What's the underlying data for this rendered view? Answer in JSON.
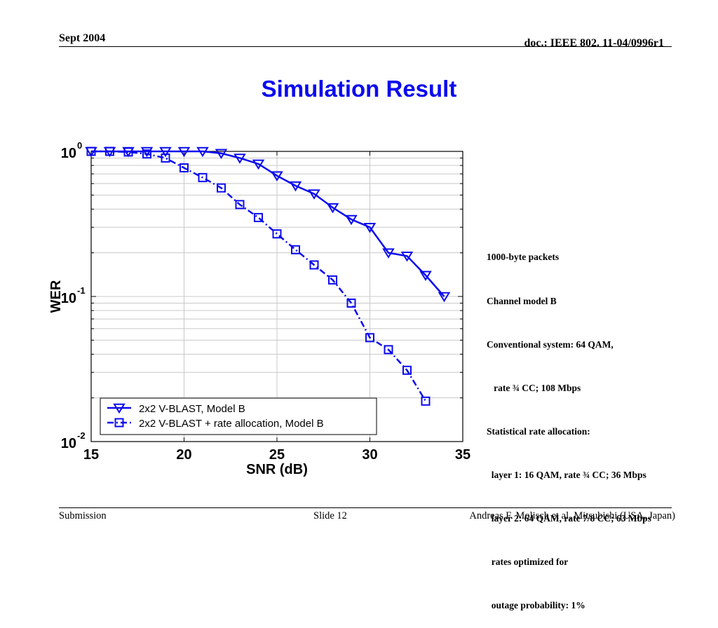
{
  "header": {
    "date": "Sept 2004",
    "doc": "doc.: IEEE 802. 11-04/0996r1"
  },
  "slide": {
    "title": "Simulation Result"
  },
  "notes": {
    "lines": [
      "1000-byte packets",
      "Channel model B",
      "Conventional system: 64 QAM,",
      "   rate ¾ CC; 108 Mbps",
      "Statistical rate allocation:",
      "  layer 1: 16 QAM, rate ¾ CC; 36 Mbps",
      "  layer 2: 64 QAM, rate 7/8 CC; 63 Mbps",
      "  rates optimized for",
      "  outage probability: 1%"
    ]
  },
  "footer": {
    "left": "Submission",
    "center": "Slide 12",
    "right": "Andreas F. Molisch et al, Mitsubishi (USA, Japan)"
  },
  "chart_data": {
    "type": "line",
    "xlabel": "SNR (dB)",
    "ylabel": "WER",
    "xlim": [
      15,
      35
    ],
    "ylim": [
      0.01,
      1
    ],
    "yscale": "log",
    "xticks": [
      15,
      20,
      25,
      30,
      35
    ],
    "yticks": [
      {
        "base": "10",
        "exp": "0",
        "value": 1
      },
      {
        "base": "10",
        "exp": "-1",
        "value": 0.1
      },
      {
        "base": "10",
        "exp": "-2",
        "value": 0.01
      }
    ],
    "grid": true,
    "legend_position": "bottom-left",
    "series": [
      {
        "name": "2x2 V-BLAST, Model B",
        "marker": "triangle-down",
        "linestyle": "solid",
        "color": "#0b0bef",
        "x": [
          15,
          16,
          17,
          18,
          19,
          20,
          21,
          22,
          23,
          24,
          25,
          26,
          27,
          28,
          29,
          30,
          31,
          32,
          33,
          34
        ],
        "y": [
          1.0,
          1.0,
          1.0,
          1.0,
          1.0,
          1.0,
          1.0,
          0.97,
          0.9,
          0.82,
          0.68,
          0.58,
          0.51,
          0.41,
          0.34,
          0.3,
          0.2,
          0.19,
          0.14,
          0.1
        ]
      },
      {
        "name": "2x2 V-BLAST + rate allocation, Model B",
        "marker": "square",
        "linestyle": "dash-dot",
        "color": "#0b0bef",
        "x": [
          15,
          16,
          17,
          18,
          19,
          20,
          21,
          22,
          23,
          24,
          25,
          26,
          27,
          28,
          29,
          30,
          31,
          32,
          33
        ],
        "y": [
          1.0,
          1.0,
          0.99,
          0.96,
          0.9,
          0.77,
          0.66,
          0.56,
          0.43,
          0.35,
          0.27,
          0.21,
          0.165,
          0.13,
          0.09,
          0.052,
          0.043,
          0.031,
          0.019
        ]
      }
    ]
  }
}
